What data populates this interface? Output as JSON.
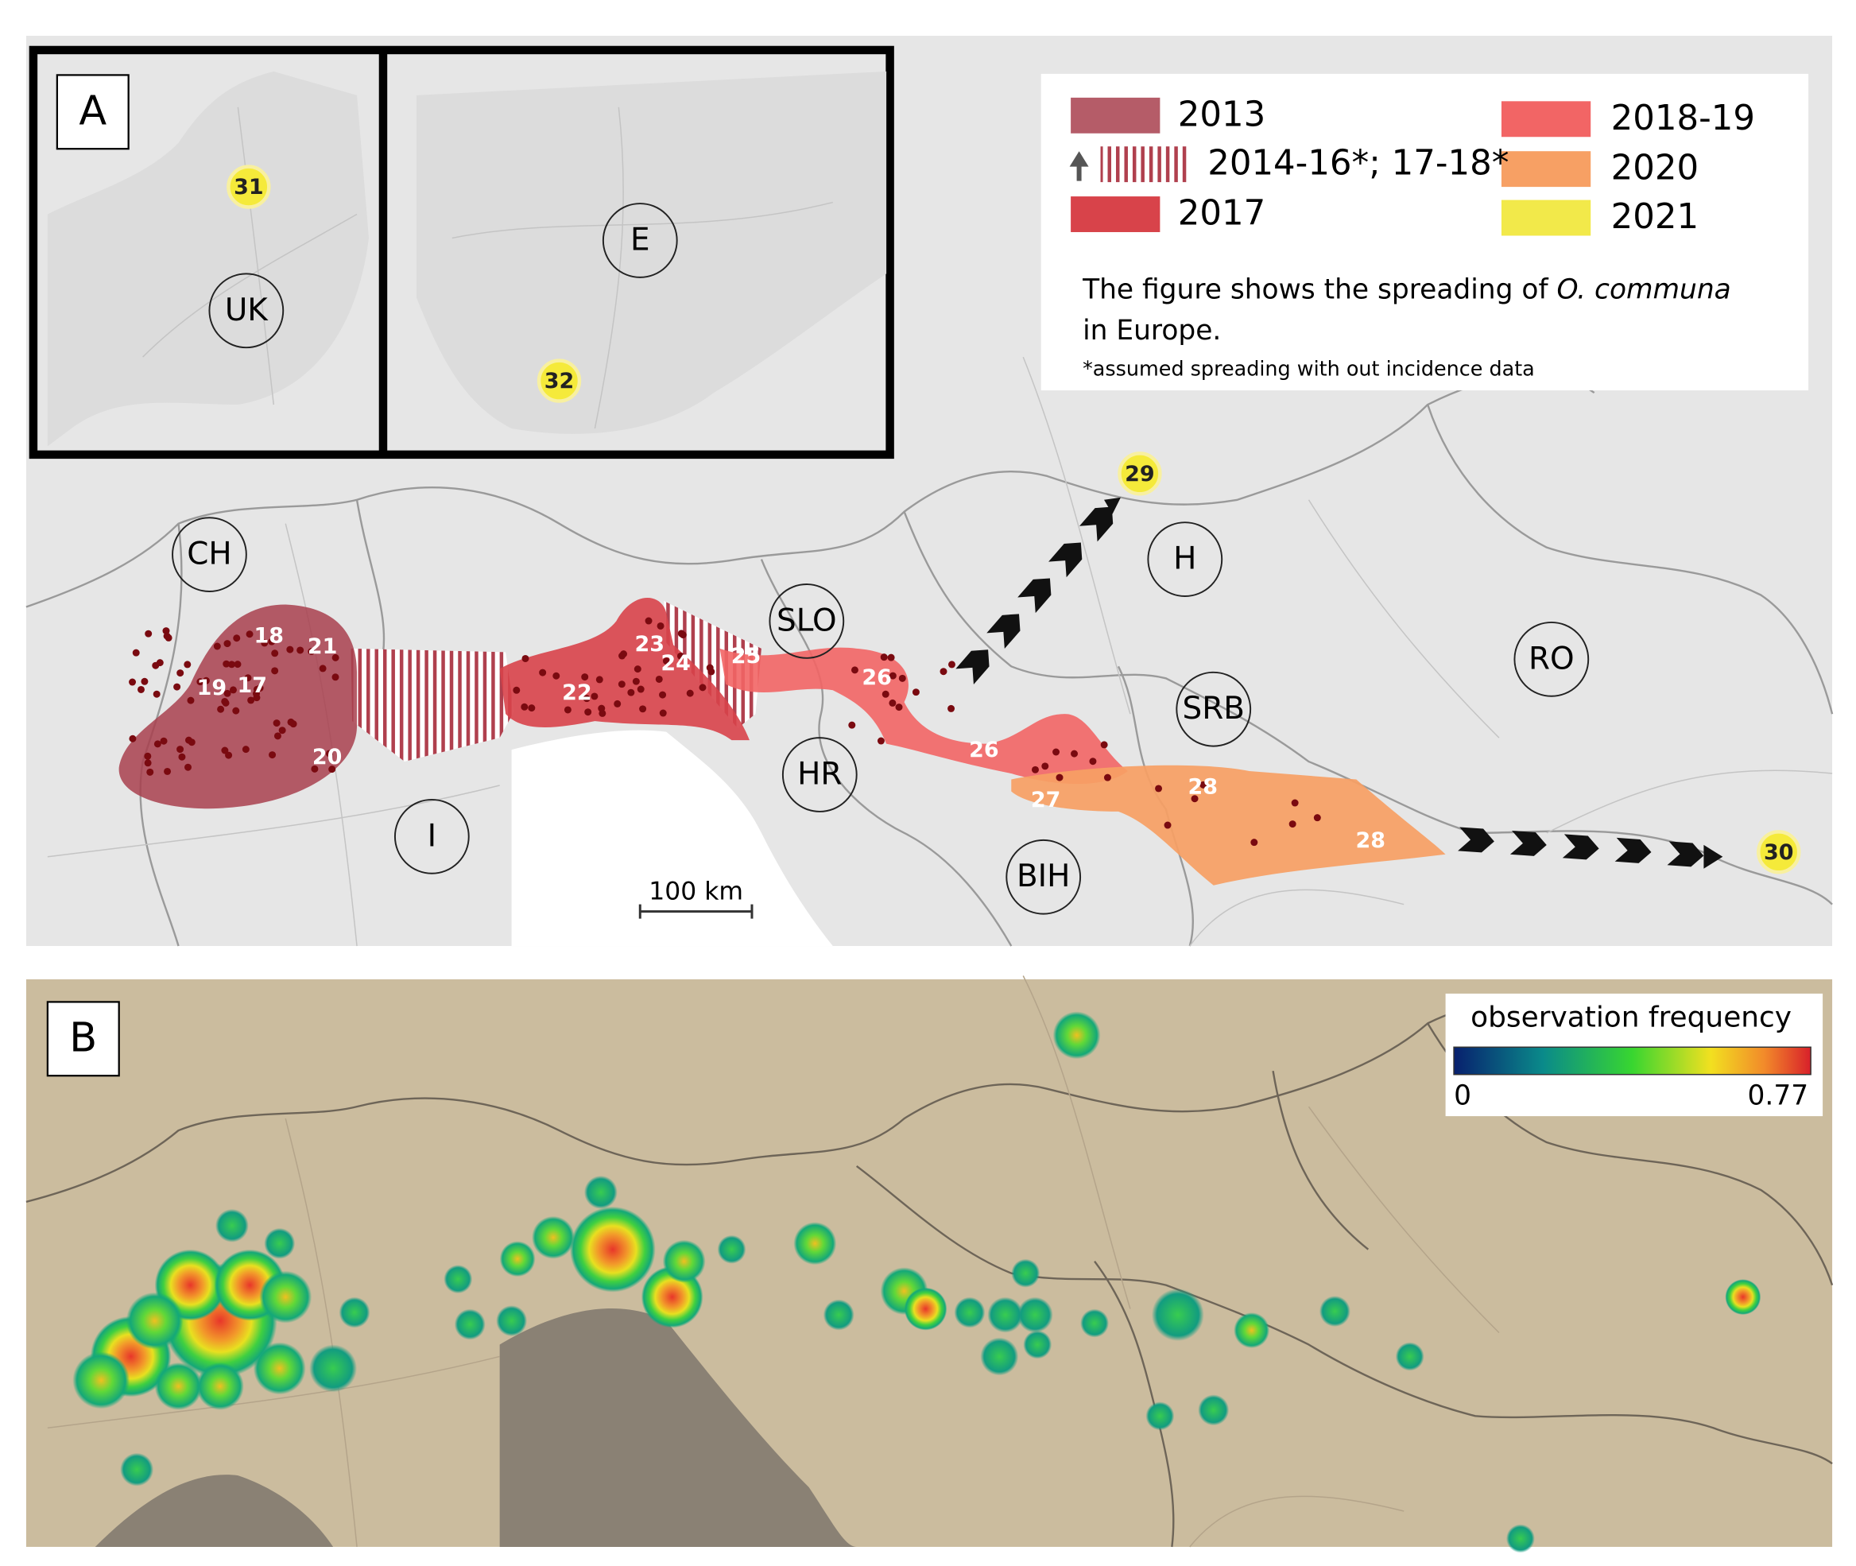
{
  "panel_a": {
    "label": "A",
    "legend": [
      "2013",
      "2014-16*; 17-18*",
      "2017",
      "2018-19",
      "2020",
      "2021"
    ],
    "caption": [
      "The figure shows the spreading of ",
      "O. communa",
      "in Europe."
    ],
    "footnote": "*assumed spreading with out incidence data",
    "countries": [
      "UK",
      "E",
      "CH",
      "SLO",
      "H",
      "RO",
      "SRB",
      "HR",
      "BIH",
      "I"
    ],
    "sites": [
      "18",
      "21",
      "19",
      "17",
      "20",
      "22",
      "23",
      "24",
      "25",
      "26",
      "26",
      "27",
      "28",
      "28",
      "31",
      "32",
      "29",
      "30"
    ],
    "scale": "100 km"
  },
  "panel_b": {
    "label": "B",
    "colorbar_title": "observation frequency",
    "colorbar_min": "0",
    "colorbar_max": "0.77"
  }
}
